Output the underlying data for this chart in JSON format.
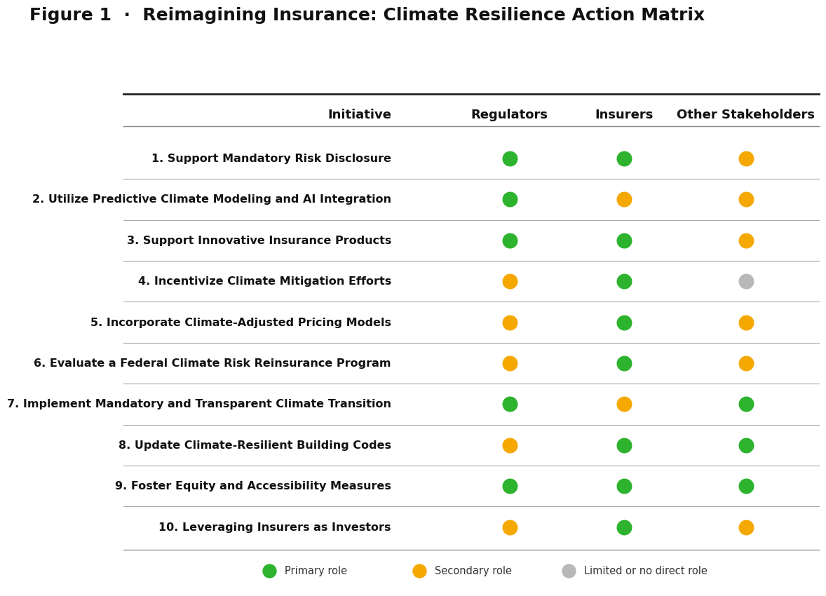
{
  "title": "Figure 1  ·  Reimagining Insurance: Climate Resilience Action Matrix",
  "columns": [
    "Initiative",
    "Regulators",
    "Insurers",
    "Other Stakeholders"
  ],
  "initiatives": [
    "1. Support Mandatory Risk Disclosure",
    "2. Utilize Predictive Climate Modeling and AI Integration",
    "3. Support Innovative Insurance Products",
    "4. Incentivize Climate Mitigation Efforts",
    "5. Incorporate Climate-Adjusted Pricing Models",
    "6. Evaluate a Federal Climate Risk Reinsurance Program",
    "7. Implement Mandatory and Transparent Climate Transition",
    "8. Update Climate-Resilient Building Codes",
    "9. Foster Equity and Accessibility Measures",
    "10. Leveraging Insurers as Investors"
  ],
  "dot_data": [
    [
      "green",
      "green",
      "orange"
    ],
    [
      "green",
      "orange",
      "orange"
    ],
    [
      "green",
      "green",
      "orange"
    ],
    [
      "orange",
      "green",
      "gray"
    ],
    [
      "orange",
      "green",
      "orange"
    ],
    [
      "orange",
      "green",
      "orange"
    ],
    [
      "green",
      "orange",
      "green"
    ],
    [
      "orange",
      "green",
      "green"
    ],
    [
      "green",
      "green",
      "green"
    ],
    [
      "orange",
      "green",
      "orange"
    ]
  ],
  "color_map": {
    "green": "#2db32d",
    "orange": "#f5a800",
    "gray": "#b8b8b8"
  },
  "legend_items": [
    {
      "label": "Primary role",
      "color": "#2db32d"
    },
    {
      "label": "Secondary role",
      "color": "#f5a800"
    },
    {
      "label": "Limited or no direct role",
      "color": "#b8b8b8"
    }
  ],
  "background_color": "#ffffff",
  "title_fontsize": 18,
  "header_fontsize": 13,
  "row_fontsize": 11.5,
  "dot_size": 220
}
